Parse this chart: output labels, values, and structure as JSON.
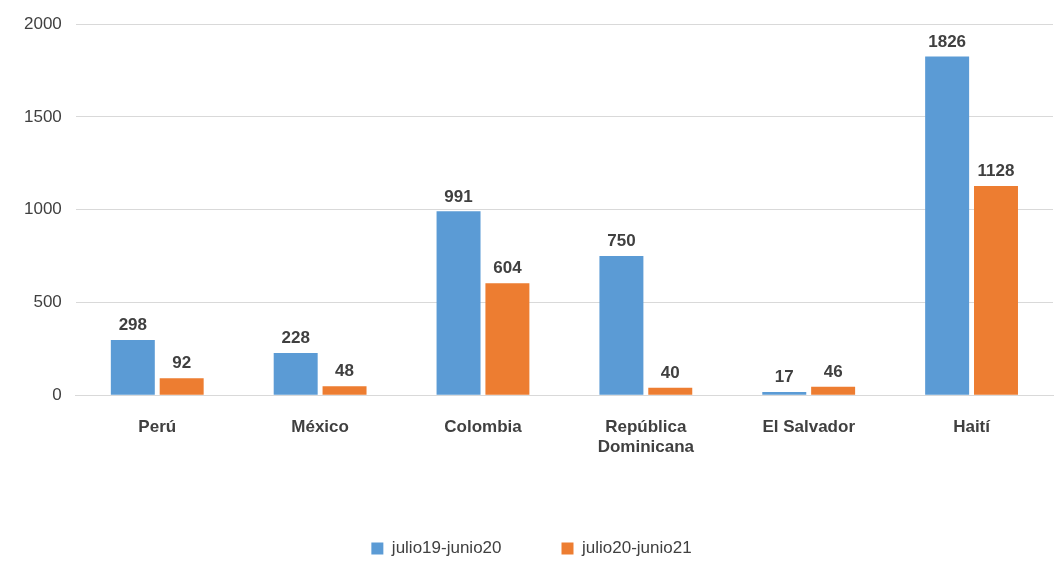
{
  "chart_data": {
    "type": "bar",
    "categories": [
      "Perú",
      "México",
      "Colombia",
      "República Dominicana",
      "El Salvador",
      "Haití"
    ],
    "series": [
      {
        "name": "julio19-junio20",
        "color": "#5b9bd5",
        "values": [
          298,
          228,
          991,
          750,
          17,
          1826
        ]
      },
      {
        "name": "julio20-junio21",
        "color": "#ed7d31",
        "values": [
          92,
          48,
          604,
          40,
          46,
          1128
        ]
      }
    ],
    "ylim": [
      0,
      2000
    ],
    "yticks": [
      0,
      500,
      1000,
      1500,
      2000
    ],
    "grid": "y",
    "legend": "bottom",
    "data_labels": true
  }
}
